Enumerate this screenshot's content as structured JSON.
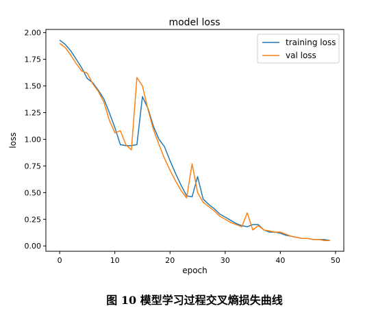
{
  "caption": "图 10   模型学习过程交叉熵损失曲线",
  "chart_data": {
    "type": "line",
    "title": "model loss",
    "xlabel": "epoch",
    "ylabel": "loss",
    "xlim": [
      -2.5,
      51.5
    ],
    "ylim": [
      -0.05,
      2.03
    ],
    "xticks": [
      0,
      10,
      20,
      30,
      40,
      50
    ],
    "yticks": [
      0.0,
      0.25,
      0.5,
      0.75,
      1.0,
      1.25,
      1.5,
      1.75,
      2.0
    ],
    "ytick_labels": [
      "0.00",
      "0.25",
      "0.50",
      "0.75",
      "1.00",
      "1.25",
      "1.50",
      "1.75",
      "2.00"
    ],
    "grid": false,
    "legend_position": "top-right",
    "x": [
      0,
      1,
      2,
      3,
      4,
      5,
      6,
      7,
      8,
      9,
      10,
      11,
      12,
      13,
      14,
      15,
      16,
      17,
      18,
      19,
      20,
      21,
      22,
      23,
      24,
      25,
      26,
      27,
      28,
      29,
      30,
      31,
      32,
      33,
      34,
      35,
      36,
      37,
      38,
      39,
      40,
      41,
      42,
      43,
      44,
      45,
      46,
      47,
      48,
      49
    ],
    "series": [
      {
        "name": "training loss",
        "color": "#1f77b4",
        "values": [
          1.93,
          1.89,
          1.83,
          1.75,
          1.67,
          1.57,
          1.53,
          1.46,
          1.38,
          1.25,
          1.11,
          0.95,
          0.94,
          0.94,
          0.95,
          1.4,
          1.29,
          1.12,
          1.0,
          0.93,
          0.8,
          0.68,
          0.57,
          0.47,
          0.46,
          0.65,
          0.44,
          0.39,
          0.35,
          0.3,
          0.27,
          0.24,
          0.21,
          0.19,
          0.18,
          0.2,
          0.2,
          0.15,
          0.13,
          0.13,
          0.12,
          0.1,
          0.09,
          0.08,
          0.07,
          0.07,
          0.06,
          0.06,
          0.06,
          0.05
        ]
      },
      {
        "name": "val loss",
        "color": "#ff7f0e",
        "values": [
          1.9,
          1.86,
          1.79,
          1.71,
          1.64,
          1.62,
          1.52,
          1.45,
          1.35,
          1.18,
          1.06,
          1.08,
          0.95,
          0.9,
          1.58,
          1.5,
          1.28,
          1.09,
          0.95,
          0.82,
          0.71,
          0.61,
          0.52,
          0.45,
          0.77,
          0.5,
          0.41,
          0.37,
          0.33,
          0.28,
          0.25,
          0.22,
          0.2,
          0.18,
          0.31,
          0.15,
          0.19,
          0.15,
          0.14,
          0.13,
          0.13,
          0.11,
          0.09,
          0.08,
          0.07,
          0.07,
          0.06,
          0.06,
          0.05,
          0.05
        ]
      }
    ]
  }
}
